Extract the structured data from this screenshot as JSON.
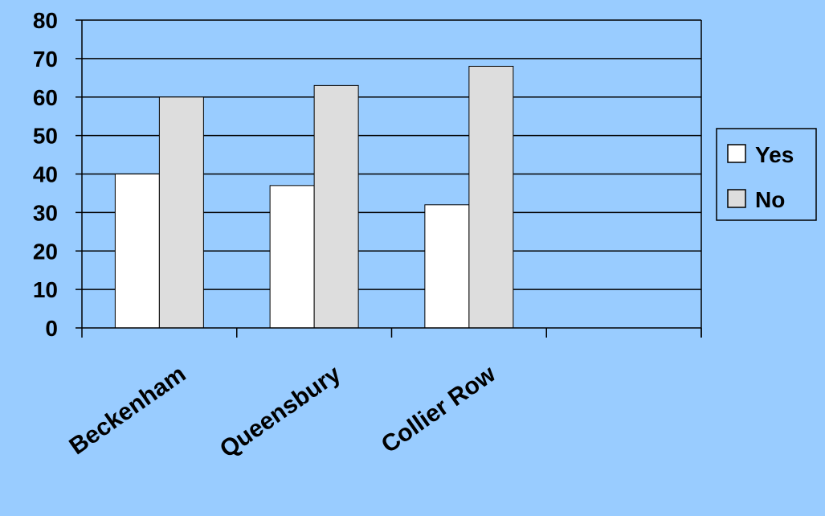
{
  "chart_data": {
    "type": "bar",
    "categories": [
      "Beckenham",
      "Queensbury",
      "Collier Row",
      ""
    ],
    "series": [
      {
        "name": "Yes",
        "values": [
          40,
          37,
          32,
          null
        ],
        "color": "#ffffff"
      },
      {
        "name": "No",
        "values": [
          60,
          63,
          68,
          null
        ],
        "color": "#dddddd"
      }
    ],
    "ylim": [
      0,
      80
    ],
    "yticks": [
      0,
      10,
      20,
      30,
      40,
      50,
      60,
      70,
      80
    ],
    "grid": true,
    "legend_position": "right",
    "background_color": "#99ccff"
  }
}
